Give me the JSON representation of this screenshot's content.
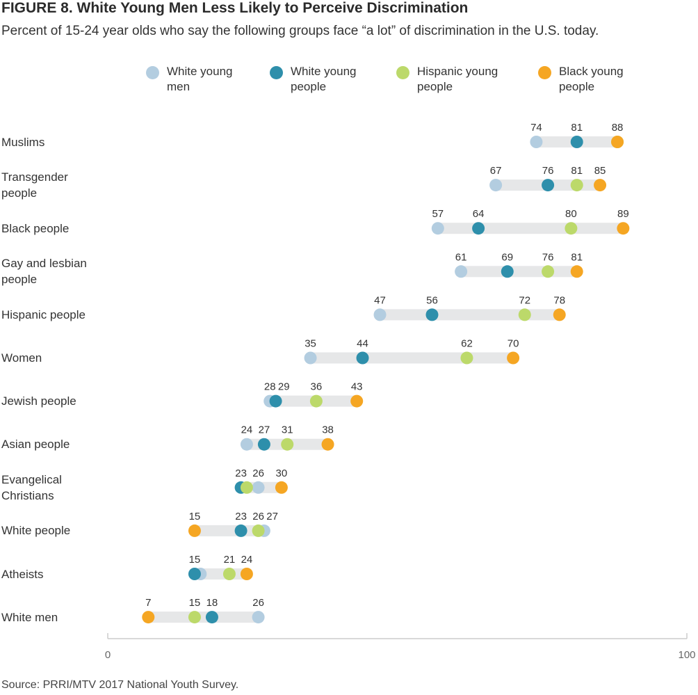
{
  "title": "FIGURE 8.  White Young Men Less Likely to Perceive Discrimination",
  "subtitle": "Percent of 15-24 year olds who say the following groups face “a lot” of discrimination in the U.S. today.",
  "source": "Source: PRRI/MTV 2017 National Youth Survey.",
  "chart_data": {
    "type": "scatter",
    "subtype": "dot-plot",
    "title": "FIGURE 8.  White Young Men Less Likely to Perceive Discrimination",
    "xlim": [
      0,
      100
    ],
    "x_tick_labels": [
      "0",
      "100"
    ],
    "legend_position": "top",
    "grid": false,
    "series": [
      {
        "key": "white_young_men",
        "name": "White young men",
        "color": "#b3cde0"
      },
      {
        "key": "white_young_people",
        "name": "White young people",
        "color": "#2e8fab"
      },
      {
        "key": "hispanic_young_people",
        "name": "Hispanic young people",
        "color": "#bcd96a"
      },
      {
        "key": "black_young_people",
        "name": "Black young people",
        "color": "#f5a623"
      }
    ],
    "categories": [
      "Muslims",
      "Transgender people",
      "Black people",
      "Gay and lesbian people",
      "Hispanic people",
      "Women",
      "Jewish people",
      "Asian people",
      "Evangelical Christians",
      "White people",
      "Atheists",
      "White men"
    ],
    "rows": [
      {
        "label": "Muslims",
        "white_young_men": 74,
        "white_young_people": 81,
        "hispanic_young_people": 88,
        "black_young_people": 88
      },
      {
        "label": "Transgender people",
        "white_young_men": 67,
        "white_young_people": 76,
        "hispanic_young_people": 81,
        "black_young_people": 85
      },
      {
        "label": "Black people",
        "white_young_men": 57,
        "white_young_people": 64,
        "hispanic_young_people": 80,
        "black_young_people": 89
      },
      {
        "label": "Gay and lesbian people",
        "white_young_men": 61,
        "white_young_people": 69,
        "hispanic_young_people": 76,
        "black_young_people": 81
      },
      {
        "label": "Hispanic people",
        "white_young_men": 47,
        "white_young_people": 56,
        "hispanic_young_people": 72,
        "black_young_people": 78
      },
      {
        "label": "Women",
        "white_young_men": 35,
        "white_young_people": 44,
        "hispanic_young_people": 62,
        "black_young_people": 70
      },
      {
        "label": "Jewish people",
        "white_young_men": 28,
        "white_young_people": 29,
        "hispanic_young_people": 36,
        "black_young_people": 43
      },
      {
        "label": "Asian people",
        "white_young_men": 24,
        "white_young_people": 27,
        "hispanic_young_people": 31,
        "black_young_people": 38
      },
      {
        "label": "Evangelical Christians",
        "white_young_men": 26,
        "white_young_people": 23,
        "hispanic_young_people": 24,
        "black_young_people": 30
      },
      {
        "label": "White people",
        "white_young_men": 27,
        "white_young_people": 23,
        "hispanic_young_people": 26,
        "black_young_people": 15
      },
      {
        "label": "Atheists",
        "white_young_men": 16,
        "white_young_people": 15,
        "hispanic_young_people": 21,
        "black_young_people": 24
      },
      {
        "label": "White men",
        "white_young_men": 26,
        "white_young_people": 18,
        "hispanic_young_people": 15,
        "black_young_people": 7
      }
    ],
    "printed_labels": [
      [
        "74",
        "81",
        "88"
      ],
      [
        "67",
        "76",
        "81",
        "85"
      ],
      [
        "57",
        "64",
        "80",
        "89"
      ],
      [
        "61",
        "69",
        "76",
        "81"
      ],
      [
        "47",
        "56",
        "72",
        "78"
      ],
      [
        "35",
        "44",
        "62",
        "70"
      ],
      [
        "28",
        "29",
        "36",
        "43"
      ],
      [
        "24",
        "27",
        "31",
        "38"
      ],
      [
        "23",
        "26",
        "30"
      ],
      [
        "15",
        "23",
        "26",
        "27"
      ],
      [
        "15",
        "21",
        "24"
      ],
      [
        "7",
        "15",
        "18",
        "26"
      ]
    ]
  }
}
